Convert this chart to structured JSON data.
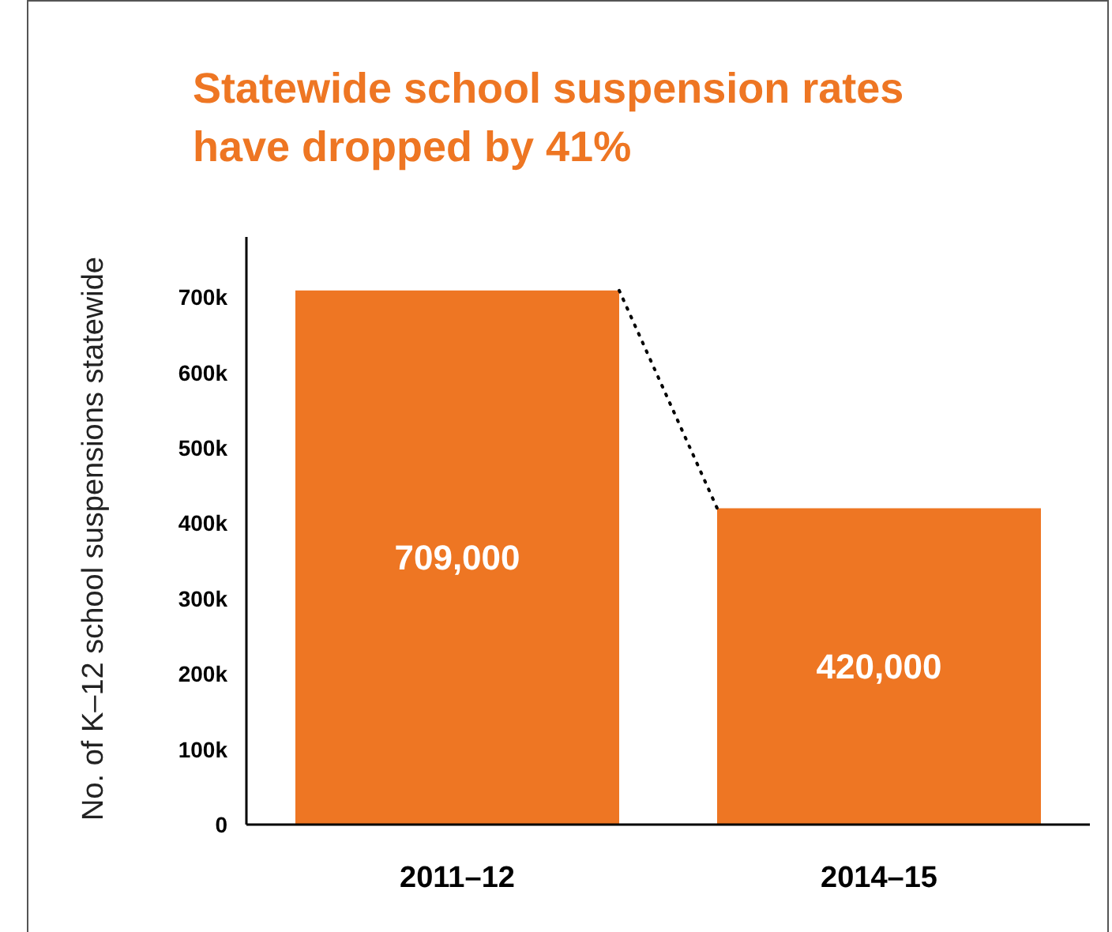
{
  "chart_data": {
    "type": "bar",
    "title": "Statewide school suspension rates\nhave dropped by 41%",
    "ylabel": "No. of K–12 school suspensions statewide",
    "categories": [
      "2011–12",
      "2014–15"
    ],
    "values": [
      709000,
      420000
    ],
    "color": "#ee7623",
    "value_labels": [
      "709,000",
      "420,000"
    ],
    "ylim": [
      0,
      780000
    ],
    "yticks": [
      0,
      {
        "value": 100000,
        "label": "100k"
      },
      {
        "value": 200000,
        "label": "200k"
      },
      {
        "value": 300000,
        "label": "300k"
      },
      {
        "value": 400000,
        "label": "400k"
      },
      {
        "value": 500000,
        "label": "500k"
      },
      {
        "value": 600000,
        "label": "600k"
      },
      {
        "value": 700000,
        "label": "700k"
      }
    ],
    "grid": false,
    "legend": false
  }
}
